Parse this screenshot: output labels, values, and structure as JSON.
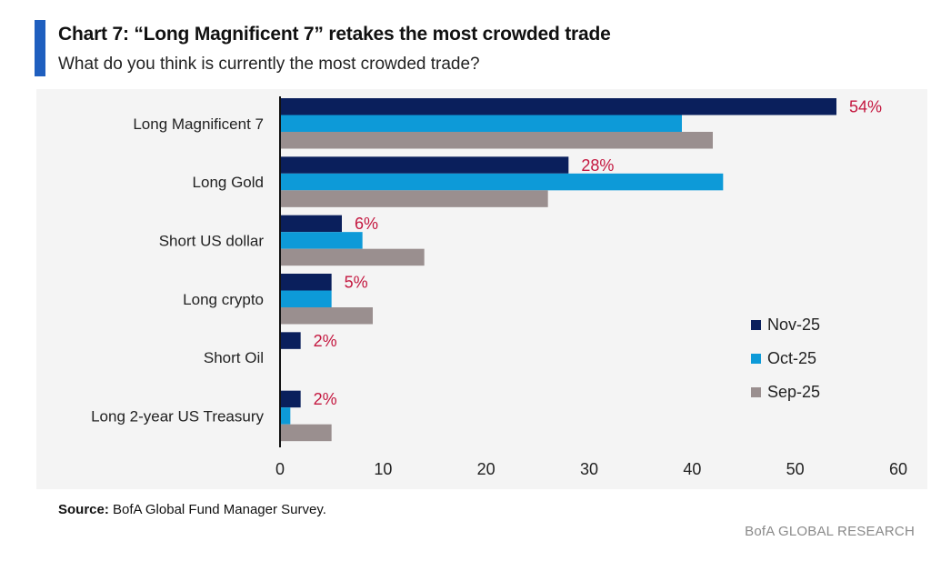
{
  "header": {
    "title": "Chart 7: “Long Magnificent 7” retakes the most crowded trade",
    "subtitle": "What do you think is currently the most crowded trade?",
    "accent_color": "#1f5fbf"
  },
  "footer": {
    "source_label": "Source:",
    "source_text": " BofA Global Fund Manager Survey.",
    "brand": "BofA GLOBAL RESEARCH"
  },
  "chart_data": {
    "type": "bar",
    "orientation": "horizontal",
    "categories": [
      "Long Magnificent 7",
      "Long Gold",
      "Short US dollar",
      "Long crypto",
      "Short Oil",
      "Long 2-year US Treasury"
    ],
    "series": [
      {
        "name": "Nov-25",
        "color": "#0a1f5c",
        "values": [
          54,
          28,
          6,
          5,
          2,
          2
        ]
      },
      {
        "name": "Oct-25",
        "color": "#0d9ad8",
        "values": [
          39,
          43,
          8,
          5,
          0,
          1
        ]
      },
      {
        "name": "Sep-25",
        "color": "#9a8f8f",
        "values": [
          42,
          26,
          14,
          9,
          0,
          5
        ]
      }
    ],
    "data_labels": [
      "54%",
      "28%",
      "6%",
      "5%",
      "2%",
      "2%"
    ],
    "data_label_color": "#c4173f",
    "xlim": [
      0,
      60
    ],
    "xticks": [
      "0",
      "10",
      "20",
      "30",
      "40",
      "50",
      "60"
    ],
    "legend_position": "right",
    "grid": false,
    "plot_background": "#f4f4f4"
  }
}
